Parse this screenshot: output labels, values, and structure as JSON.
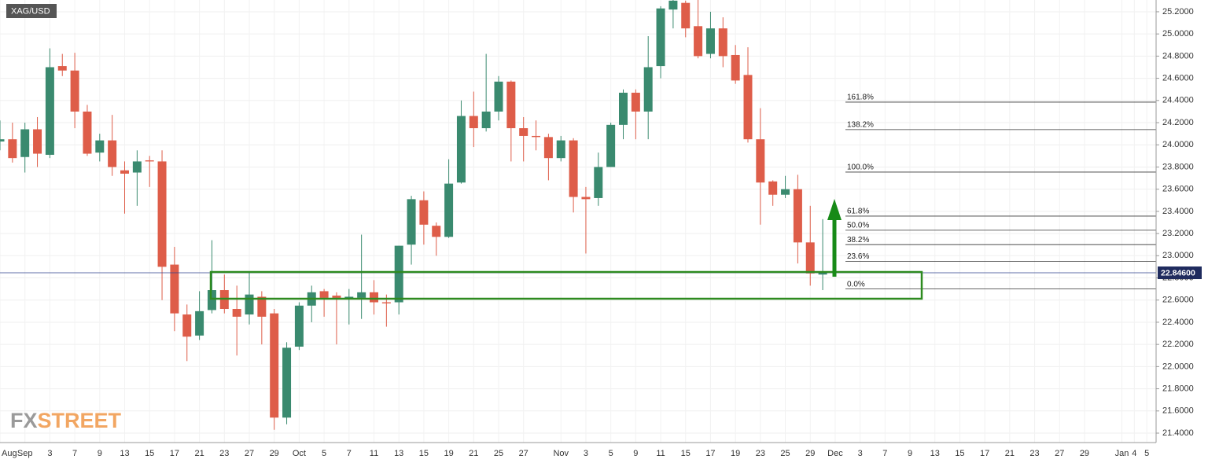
{
  "chart_data": {
    "type": "candlestick",
    "title": "XAG/USD",
    "watermark": [
      "FX",
      "STREET"
    ],
    "categories": [
      "Aug",
      null,
      "Sep",
      null,
      "3",
      null,
      "7",
      null,
      "9",
      null,
      "13",
      null,
      "15",
      null,
      "17",
      null,
      "21",
      null,
      "23",
      null,
      "27",
      null,
      "29",
      null,
      "Oct",
      null,
      "5",
      null,
      "7",
      null,
      "11",
      null,
      "13",
      null,
      "15",
      null,
      "19",
      null,
      "21",
      null,
      "25",
      null,
      "27",
      null,
      null,
      "Nov",
      null,
      "3",
      null,
      "5",
      null,
      "9",
      null,
      "11",
      null,
      "15",
      null,
      "17",
      null,
      "19",
      null,
      "23",
      null,
      "25",
      null,
      "29",
      null,
      "Dec",
      null,
      "3",
      null,
      "7",
      null,
      "9",
      null,
      "13",
      null,
      "15",
      null,
      "17",
      null,
      "21",
      null,
      "23",
      null,
      "27",
      null,
      "29",
      null,
      null,
      "Jan",
      "4",
      "5"
    ],
    "open": [
      24.03,
      24.05,
      23.89,
      24.14,
      23.91,
      24.71,
      24.67,
      24.3,
      23.93,
      24.04,
      23.77,
      23.75,
      23.86,
      23.85,
      22.92,
      22.47,
      22.28,
      22.51,
      22.69,
      22.52,
      22.47,
      22.63,
      22.48,
      21.54,
      22.18,
      22.55,
      22.68,
      22.64,
      22.61,
      22.62,
      22.67,
      22.58,
      22.58,
      23.1,
      23.5,
      23.27,
      23.17,
      23.66,
      24.26,
      24.15,
      24.3,
      24.57,
      24.15,
      24.08,
      24.07,
      23.88,
      24.04,
      23.53,
      23.52,
      23.8,
      24.18,
      24.47,
      24.3,
      24.71,
      25.22,
      25.28,
      25.07,
      24.82,
      25.05,
      24.81,
      24.63,
      24.05,
      23.67,
      23.55,
      23.6,
      23.12,
      22.83,
      null,
      null,
      null,
      null,
      null,
      null,
      null,
      null,
      null,
      null,
      null,
      null,
      null,
      null,
      null,
      null,
      null,
      null,
      null,
      null,
      null,
      null,
      null,
      null,
      null,
      null
    ],
    "high": [
      24.22,
      24.2,
      24.2,
      24.25,
      24.87,
      24.82,
      24.83,
      24.36,
      24.1,
      24.27,
      23.85,
      23.95,
      23.9,
      23.95,
      23.08,
      22.56,
      22.68,
      23.14,
      22.83,
      22.73,
      22.85,
      22.68,
      22.52,
      22.22,
      22.58,
      22.73,
      22.7,
      22.67,
      22.7,
      23.19,
      22.78,
      22.65,
      23.09,
      23.54,
      23.58,
      23.3,
      23.87,
      24.4,
      24.48,
      24.82,
      24.62,
      24.58,
      24.25,
      24.22,
      24.1,
      24.08,
      24.06,
      23.62,
      23.93,
      24.2,
      24.5,
      24.5,
      24.98,
      25.25,
      25.35,
      25.3,
      25.32,
      25.2,
      25.15,
      24.9,
      24.88,
      24.33,
      23.68,
      23.72,
      23.73,
      23.45,
      23.33,
      null,
      null,
      null,
      null,
      null,
      null,
      null,
      null,
      null,
      null,
      null,
      null,
      null,
      null,
      null,
      null,
      null,
      null,
      null,
      null,
      null,
      null,
      null,
      null,
      null,
      null
    ],
    "low": [
      23.95,
      23.84,
      23.75,
      23.8,
      23.88,
      24.62,
      24.15,
      23.9,
      23.85,
      23.72,
      23.38,
      23.45,
      23.62,
      22.6,
      22.32,
      22.05,
      22.24,
      22.48,
      22.48,
      22.1,
      22.38,
      22.2,
      21.43,
      21.48,
      22.15,
      22.4,
      22.45,
      22.2,
      22.38,
      22.43,
      22.47,
      22.36,
      22.47,
      22.92,
      23.1,
      23.0,
      23.16,
      23.65,
      23.98,
      24.12,
      24.22,
      23.85,
      23.85,
      23.95,
      23.68,
      23.85,
      23.39,
      23.02,
      23.45,
      23.8,
      24.05,
      24.05,
      24.05,
      24.6,
      25.05,
      24.97,
      24.78,
      24.78,
      24.7,
      24.55,
      24.02,
      23.28,
      23.45,
      23.52,
      22.93,
      22.73,
      22.69,
      null,
      null,
      null,
      null,
      null,
      null,
      null,
      null,
      null,
      null,
      null,
      null,
      null,
      null,
      null,
      null,
      null,
      null,
      null,
      null,
      null,
      null,
      null,
      null,
      null,
      null
    ],
    "close": [
      24.05,
      23.88,
      24.14,
      23.92,
      24.7,
      24.67,
      24.3,
      23.92,
      24.04,
      23.8,
      23.74,
      23.85,
      23.85,
      22.9,
      22.48,
      22.27,
      22.5,
      22.69,
      22.52,
      22.45,
      22.65,
      22.45,
      21.54,
      22.17,
      22.55,
      22.67,
      22.62,
      22.62,
      22.63,
      22.67,
      22.58,
      22.57,
      23.09,
      23.51,
      23.28,
      23.17,
      23.65,
      24.26,
      24.15,
      24.3,
      24.57,
      24.15,
      24.08,
      24.07,
      23.88,
      24.04,
      23.53,
      23.51,
      23.8,
      24.18,
      24.47,
      24.3,
      24.7,
      25.23,
      25.3,
      25.05,
      24.8,
      25.05,
      24.8,
      24.58,
      24.05,
      23.66,
      23.55,
      23.6,
      23.12,
      22.84,
      22.846,
      null,
      null,
      null,
      null,
      null,
      null,
      null,
      null,
      null,
      null,
      null,
      null,
      null,
      null,
      null,
      null,
      null,
      null,
      null,
      null,
      null,
      null,
      null,
      null,
      null,
      null
    ],
    "up_color": "#3a8a6f",
    "down_color": "#de5d49",
    "ylim": [
      21.315,
      25.306
    ],
    "yticks": [
      {
        "value": 21.4,
        "label": "21.4000"
      },
      {
        "value": 21.6,
        "label": "21.6000"
      },
      {
        "value": 21.8,
        "label": "21.8000"
      },
      {
        "value": 22.0,
        "label": "22.0000"
      },
      {
        "value": 22.2,
        "label": "22.2000"
      },
      {
        "value": 22.4,
        "label": "22.4000"
      },
      {
        "value": 22.6,
        "label": "22.6000"
      },
      {
        "value": 22.8,
        "label": "22.8000"
      },
      {
        "value": 23.0,
        "label": "23.0000"
      },
      {
        "value": 23.2,
        "label": "23.2000"
      },
      {
        "value": 23.4,
        "label": "23.4000"
      },
      {
        "value": 23.6,
        "label": "23.6000"
      },
      {
        "value": 23.8,
        "label": "23.8000"
      },
      {
        "value": 24.0,
        "label": "24.0000"
      },
      {
        "value": 24.2,
        "label": "24.2000"
      },
      {
        "value": 24.4,
        "label": "24.4000"
      },
      {
        "value": 24.6,
        "label": "24.6000"
      },
      {
        "value": 24.8,
        "label": "24.8000"
      },
      {
        "value": 25.0,
        "label": "25.0000"
      },
      {
        "value": 25.2,
        "label": "25.2000"
      }
    ],
    "grid": true,
    "last_price": {
      "value": 22.846,
      "label": "22.84600"
    },
    "fib_levels": [
      {
        "label": "161.8%",
        "value": 24.385
      },
      {
        "label": "138.2%",
        "value": 24.137
      },
      {
        "label": "100.0%",
        "value": 23.754
      },
      {
        "label": "61.8%",
        "value": 23.357
      },
      {
        "label": "50.0%",
        "value": 23.23
      },
      {
        "label": "38.2%",
        "value": 23.1
      },
      {
        "label": "23.6%",
        "value": 22.95
      },
      {
        "label": "0.0%",
        "value": 22.7
      }
    ]
  }
}
